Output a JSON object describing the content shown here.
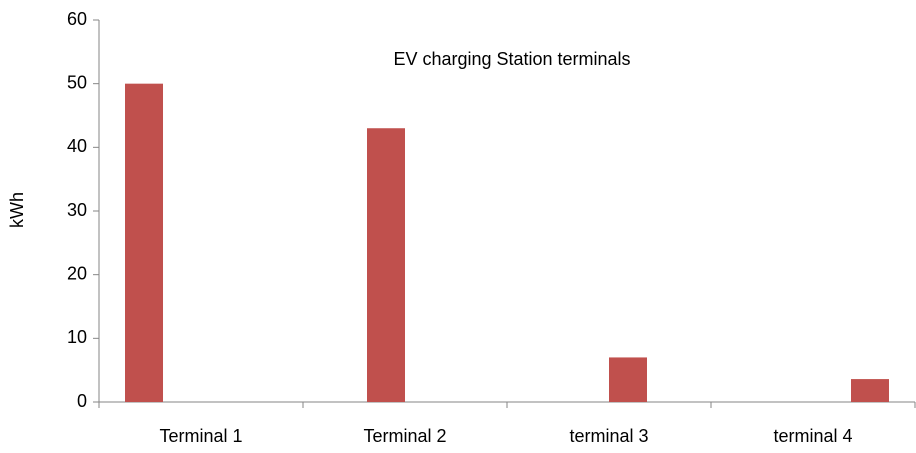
{
  "chart_data": {
    "type": "bar",
    "title": "EV charging Station terminals",
    "y_label": "kWh",
    "categories": [
      "Terminal 1",
      "Terminal 2",
      "terminal 3",
      "terminal 4"
    ],
    "series": [
      {
        "color": "#c0504d",
        "values": [
          50,
          null,
          null,
          null
        ]
      },
      {
        "color": "#c0504d",
        "values": [
          null,
          43,
          null,
          null
        ]
      },
      {
        "color": "#c0504d",
        "values": [
          null,
          null,
          7,
          null
        ]
      },
      {
        "color": "#c0504d",
        "values": [
          null,
          null,
          null,
          3.6
        ]
      }
    ],
    "ylim": [
      0,
      60
    ],
    "yticks": [
      0,
      10,
      20,
      30,
      40,
      50,
      60
    ],
    "grid": false
  }
}
